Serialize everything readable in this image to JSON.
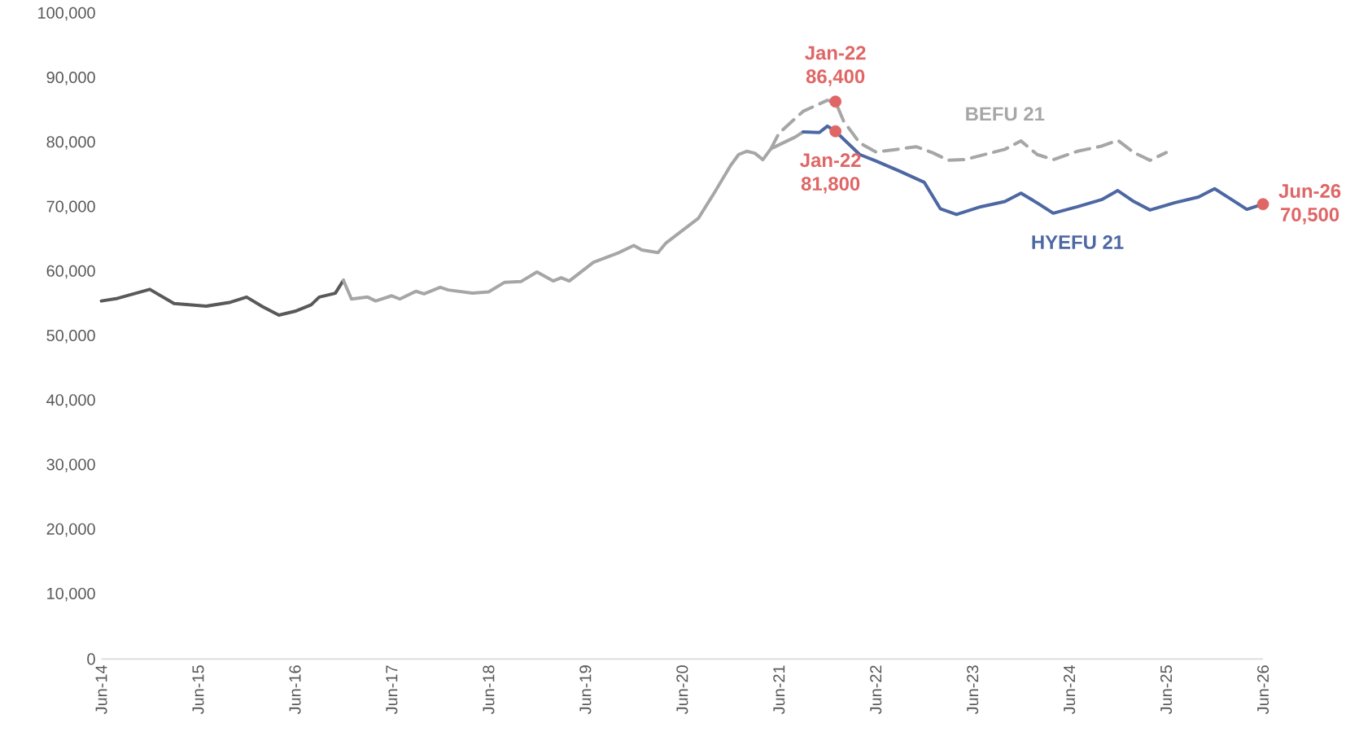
{
  "chart_data": {
    "type": "line",
    "xlim": [
      "2014-06",
      "2026-06"
    ],
    "xticks": [
      {
        "value": "2014-06",
        "label": "Jun-14"
      },
      {
        "value": "2015-06",
        "label": "Jun-15"
      },
      {
        "value": "2016-06",
        "label": "Jun-16"
      },
      {
        "value": "2017-06",
        "label": "Jun-17"
      },
      {
        "value": "2018-06",
        "label": "Jun-18"
      },
      {
        "value": "2019-06",
        "label": "Jun-19"
      },
      {
        "value": "2020-06",
        "label": "Jun-20"
      },
      {
        "value": "2021-06",
        "label": "Jun-21"
      },
      {
        "value": "2022-06",
        "label": "Jun-22"
      },
      {
        "value": "2023-06",
        "label": "Jun-23"
      },
      {
        "value": "2024-06",
        "label": "Jun-24"
      },
      {
        "value": "2025-06",
        "label": "Jun-25"
      },
      {
        "value": "2026-06",
        "label": "Jun-26"
      }
    ],
    "ylim": [
      0,
      100000
    ],
    "yticks": [
      {
        "value": 0,
        "label": "0"
      },
      {
        "value": 10000,
        "label": "10,000"
      },
      {
        "value": 20000,
        "label": "20,000"
      },
      {
        "value": 30000,
        "label": "30,000"
      },
      {
        "value": 40000,
        "label": "40,000"
      },
      {
        "value": 50000,
        "label": "50,000"
      },
      {
        "value": 60000,
        "label": "60,000"
      },
      {
        "value": 70000,
        "label": "70,000"
      },
      {
        "value": 80000,
        "label": "80,000"
      },
      {
        "value": 90000,
        "label": "90,000"
      },
      {
        "value": 100000,
        "label": "100,000"
      }
    ],
    "series": [
      {
        "color": "#595959",
        "x": [
          "2014-06",
          "2014-08",
          "2014-10",
          "2014-12",
          "2015-03",
          "2015-07",
          "2015-10",
          "2015-12",
          "2016-02",
          "2016-04",
          "2016-06",
          "2016-08",
          "2016-09",
          "2016-11",
          "2016-12"
        ],
        "values": [
          55500,
          55900,
          56600,
          57300,
          55100,
          54700,
          55300,
          56100,
          54600,
          53300,
          53900,
          54900,
          56100,
          56700,
          58700
        ]
      },
      {
        "color": "#a6a6a6",
        "x": [
          "2016-12",
          "2017-01",
          "2017-03",
          "2017-04",
          "2017-06",
          "2017-07",
          "2017-09",
          "2017-10",
          "2017-12",
          "2018-01",
          "2018-04",
          "2018-06",
          "2018-08",
          "2018-10",
          "2018-12",
          "2019-02",
          "2019-03",
          "2019-04",
          "2019-07",
          "2019-10",
          "2019-12",
          "2020-01",
          "2020-03",
          "2020-04",
          "2020-06",
          "2020-08",
          "2020-10",
          "2020-12",
          "2021-01",
          "2021-02",
          "2021-03",
          "2021-04",
          "2021-05",
          "2021-06",
          "2021-08",
          "2021-09"
        ],
        "values": [
          58700,
          55800,
          56100,
          55500,
          56300,
          55800,
          57000,
          56600,
          57600,
          57200,
          56700,
          56900,
          58400,
          58500,
          60000,
          58600,
          59100,
          58600,
          61500,
          62900,
          64100,
          63400,
          63000,
          64500,
          66400,
          68300,
          72300,
          76500,
          78200,
          78700,
          78400,
          77400,
          79100,
          79700,
          80900,
          81700
        ]
      },
      {
        "name": "BEFU 21",
        "color": "#a6a6a6",
        "line_style": "dashed",
        "x": [
          "2021-05",
          "2021-06",
          "2021-09",
          "2021-12",
          "2022-01",
          "2022-02",
          "2022-04",
          "2022-06",
          "2022-08",
          "2022-11",
          "2023-01",
          "2023-03",
          "2023-05",
          "2023-10",
          "2023-12",
          "2024-02",
          "2024-04",
          "2024-07",
          "2024-10",
          "2024-12",
          "2025-02",
          "2025-04",
          "2025-06"
        ],
        "values": [
          79100,
          81500,
          84900,
          86600,
          86400,
          83400,
          80000,
          78600,
          78900,
          79400,
          78500,
          77300,
          77400,
          79000,
          80300,
          78200,
          77400,
          78700,
          79500,
          80400,
          78500,
          77300,
          78500
        ]
      },
      {
        "name": "HYEFU 21",
        "color": "#4d67a3",
        "x": [
          "2021-09",
          "2021-11",
          "2021-12",
          "2022-01",
          "2022-04",
          "2022-06",
          "2022-09",
          "2022-12",
          "2023-02",
          "2023-04",
          "2023-07",
          "2023-10",
          "2023-12",
          "2024-02",
          "2024-04",
          "2024-07",
          "2024-10",
          "2024-12",
          "2025-02",
          "2025-04",
          "2025-07",
          "2025-10",
          "2025-12",
          "2026-02",
          "2026-04",
          "2026-06"
        ],
        "values": [
          81700,
          81600,
          82600,
          81800,
          78200,
          77200,
          75600,
          73900,
          69800,
          68900,
          70100,
          70900,
          72200,
          70700,
          69100,
          70100,
          71200,
          72600,
          70900,
          69600,
          70700,
          71600,
          72900,
          71300,
          69700,
          70500
        ]
      },
      {
        "type": "scatter",
        "marker": "circle",
        "color": "#e06666",
        "x": [
          "2022-01",
          "2022-01",
          "2026-06"
        ],
        "values": [
          86400,
          81800,
          70500
        ]
      }
    ],
    "annotations": [
      {
        "text": "Jan-22",
        "x": "2022-01",
        "y": 86400
      },
      {
        "text": "86,400",
        "x": "2022-01",
        "y": 86400
      },
      {
        "text": "Jan-22",
        "x": "2022-01",
        "y": 81800
      },
      {
        "text": "81,800",
        "x": "2022-01",
        "y": 81800
      },
      {
        "text": "Jun-26",
        "x": "2026-06",
        "y": 70500
      },
      {
        "text": "70,500",
        "x": "2026-06",
        "y": 70500
      }
    ]
  }
}
